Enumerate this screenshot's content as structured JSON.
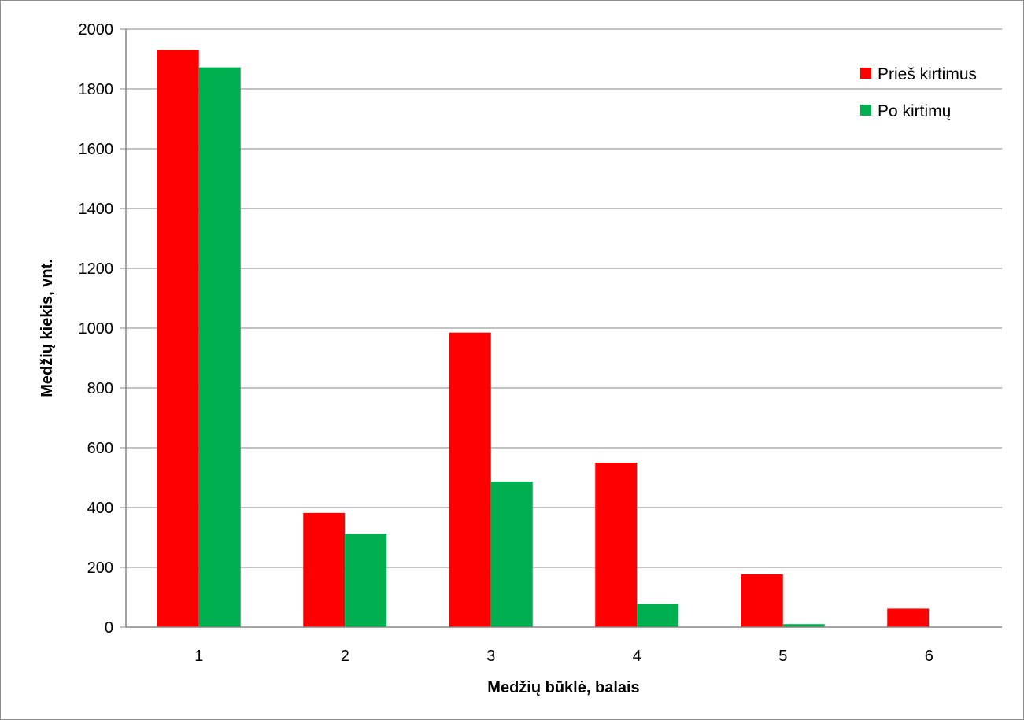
{
  "chart_data": {
    "type": "bar",
    "title": "",
    "xlabel": "Medžių būklė, balais",
    "ylabel": "Medžių kiekis, vnt.",
    "categories": [
      "1",
      "2",
      "3",
      "4",
      "5",
      "6"
    ],
    "series": [
      {
        "name": "Prieš kirtimus",
        "color": "#ff0000",
        "values": [
          1930,
          382,
          985,
          550,
          177,
          62
        ]
      },
      {
        "name": "Po kirtimų",
        "color": "#00b050",
        "values": [
          1872,
          312,
          487,
          77,
          10,
          0
        ]
      }
    ],
    "ylim": [
      0,
      2000
    ],
    "yticks": [
      "0",
      "200",
      "400",
      "600",
      "800",
      "1000",
      "1200",
      "1400",
      "1600",
      "1800",
      "2000"
    ],
    "grid": true,
    "legend_position": "top-right"
  }
}
